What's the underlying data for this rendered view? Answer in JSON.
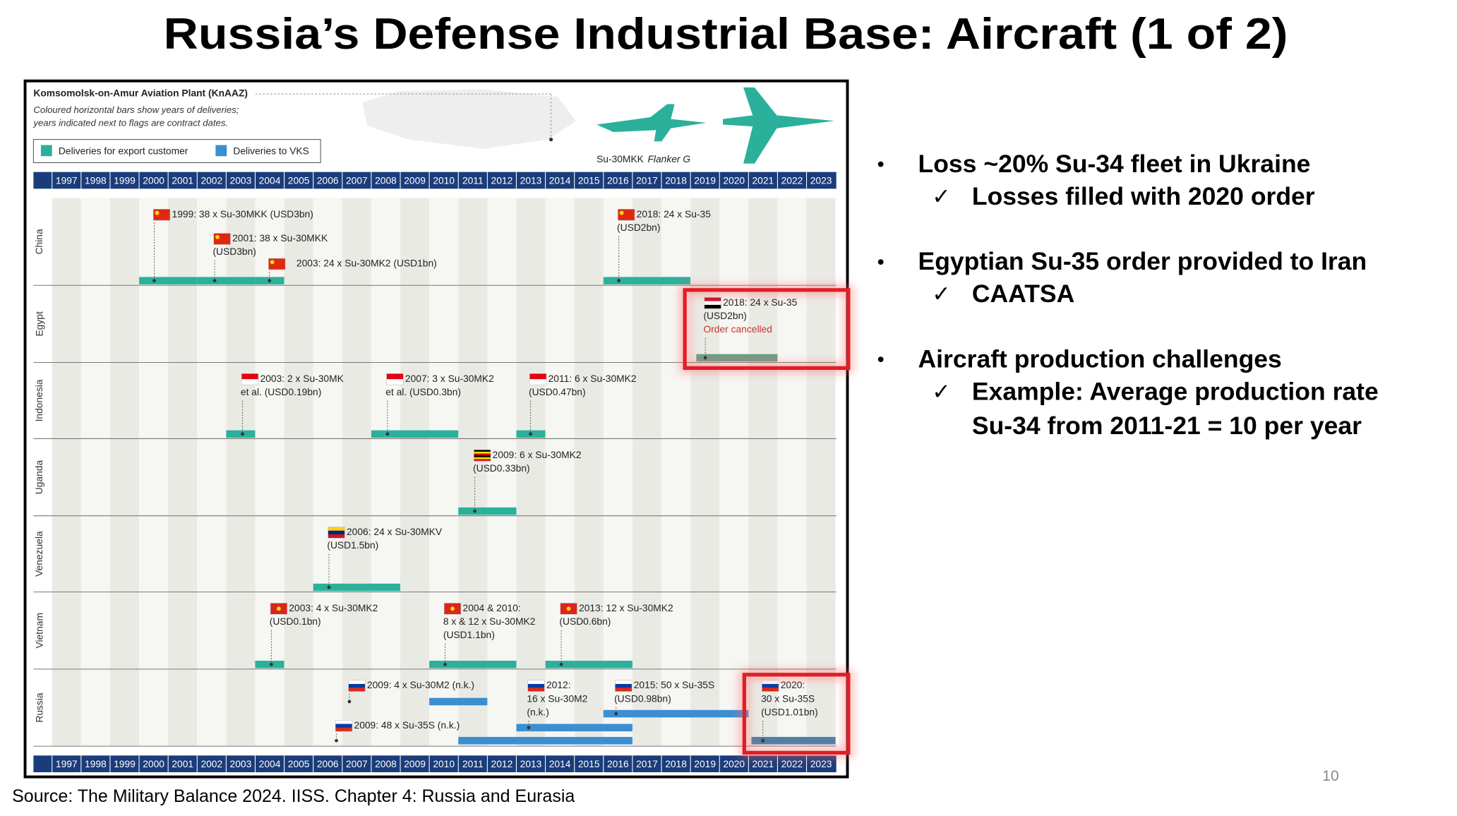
{
  "title": "Russia’s Defense Industrial Base: Aircraft (1 of 2)",
  "chart": {
    "plant": "Komsomolsk-on-Amur Aviation Plant (KnAAZ)",
    "note": [
      "Coloured horizontal bars show years of deliveries;",
      "years indicated next to flags are contract dates."
    ],
    "legend": [
      {
        "label": "Deliveries for export customer",
        "color": "#2bb19b"
      },
      {
        "label": "Deliveries to VKS",
        "color": "#3a8fd1"
      }
    ],
    "aircraft": {
      "name": "Su-30MKK",
      "variant": "Flanker G"
    },
    "years": [
      1997,
      1998,
      1999,
      2000,
      2001,
      2002,
      2003,
      2004,
      2005,
      2006,
      2007,
      2008,
      2009,
      2010,
      2011,
      2012,
      2013,
      2014,
      2015,
      2016,
      2017,
      2018,
      2019,
      2020,
      2021,
      2022,
      2023
    ],
    "rows": [
      {
        "country": "China",
        "deals": [
          {
            "lines": [
              "1999: 38 x Su-30MKK (USD3bn)"
            ]
          },
          {
            "lines": [
              "2001: 38 x Su-30MKK",
              "(USD3bn)"
            ]
          },
          {
            "lines": [
              "2003: 24 x Su-30MK2 (USD1bn)"
            ]
          },
          {
            "lines": [
              "2018: 24 x Su-35",
              "(USD2bn)"
            ]
          }
        ],
        "deliveries": [
          {
            "from": 2000,
            "to": 2002,
            "color": "#2bb19b"
          },
          {
            "from": 2002,
            "to": 2004,
            "color": "#2bb19b"
          },
          {
            "from": 2004,
            "to": 2005,
            "color": "#2bb19b"
          },
          {
            "from": 2016,
            "to": 2019,
            "color": "#2bb19b"
          }
        ]
      },
      {
        "country": "Egypt",
        "deals": [
          {
            "lines": [
              "2018: 24 x Su-35",
              "(USD2bn)"
            ],
            "status": "Order cancelled"
          }
        ],
        "deliveries": [
          {
            "from": 2019.2,
            "to": 2022,
            "color": "#6e9c86"
          }
        ]
      },
      {
        "country": "Indonesia",
        "deals": [
          {
            "lines": [
              "2003: 2 x Su-30MK",
              "et al. (USD0.19bn)"
            ]
          },
          {
            "lines": [
              "2007: 3 x Su-30MK2",
              "et al. (USD0.3bn)"
            ]
          },
          {
            "lines": [
              "2011: 6 x Su-30MK2",
              "(USD0.47bn)"
            ]
          }
        ],
        "deliveries": [
          {
            "from": 2003,
            "to": 2004,
            "color": "#2bb19b"
          },
          {
            "from": 2008,
            "to": 2011,
            "color": "#2bb19b"
          },
          {
            "from": 2013,
            "to": 2014,
            "color": "#2bb19b"
          }
        ]
      },
      {
        "country": "Uganda",
        "deals": [
          {
            "lines": [
              "2009: 6 x Su-30MK2",
              "(USD0.33bn)"
            ]
          }
        ],
        "deliveries": [
          {
            "from": 2011,
            "to": 2013,
            "color": "#2bb19b"
          }
        ]
      },
      {
        "country": "Venezuela",
        "deals": [
          {
            "lines": [
              "2006: 24 x Su-30MKV",
              "(USD1.5bn)"
            ]
          }
        ],
        "deliveries": [
          {
            "from": 2006,
            "to": 2009,
            "color": "#2bb19b"
          }
        ]
      },
      {
        "country": "Vietnam",
        "deals": [
          {
            "lines": [
              "2003: 4 x Su-30MK2",
              "(USD0.1bn)"
            ]
          },
          {
            "lines": [
              "2004 & 2010:",
              "8 x & 12 x Su-30MK2",
              "(USD1.1bn)"
            ]
          },
          {
            "lines": [
              "2013: 12 x Su-30MK2",
              "(USD0.6bn)"
            ]
          }
        ],
        "deliveries": [
          {
            "from": 2004,
            "to": 2005,
            "color": "#2bb19b"
          },
          {
            "from": 2010,
            "to": 2013,
            "color": "#2bb19b"
          },
          {
            "from": 2014,
            "to": 2017,
            "color": "#2bb19b"
          }
        ]
      },
      {
        "country": "Russia",
        "deals": [
          {
            "lines": [
              "2009: 4 x Su-30M2 (n.k.)"
            ]
          },
          {
            "lines": [
              "2012:",
              "16 x Su-30M2",
              "(n.k.)"
            ]
          },
          {
            "lines": [
              "2015: 50 x Su-35S",
              "(USD0.98bn)"
            ]
          },
          {
            "lines": [
              "2020:",
              "30 x Su-35S",
              "(USD1.01bn)"
            ]
          },
          {
            "lines": [
              "2009: 48 x Su-35S (n.k.)"
            ]
          }
        ],
        "deliveries": [
          {
            "from": 2010,
            "to": 2012,
            "color": "#3a8fd1"
          },
          {
            "from": 2011,
            "to": 2017,
            "color": "#3a8fd1"
          },
          {
            "from": 2013,
            "to": 2017,
            "color": "#3a8fd1"
          },
          {
            "from": 2016,
            "to": 2021,
            "color": "#3a8fd1"
          },
          {
            "from": 2021.1,
            "to": 2024,
            "color": "#4f7fa8"
          }
        ]
      }
    ]
  },
  "bullets": [
    {
      "text": "Loss ~20% Su-34 fleet in Ukraine",
      "sub": [
        [
          "Losses filled with 2020 order"
        ]
      ]
    },
    {
      "text": "Egyptian Su-35 order provided to Iran",
      "sub": [
        [
          "CAATSA"
        ]
      ]
    },
    {
      "text": "Aircraft production challenges",
      "sub": [
        [
          "Example: Average production rate",
          "Su-34 from 2011-21 = 10 per year"
        ]
      ]
    }
  ],
  "source": "Source: The Military Balance 2024. IISS. Chapter 4: Russia and Eurasia",
  "page": "10"
}
